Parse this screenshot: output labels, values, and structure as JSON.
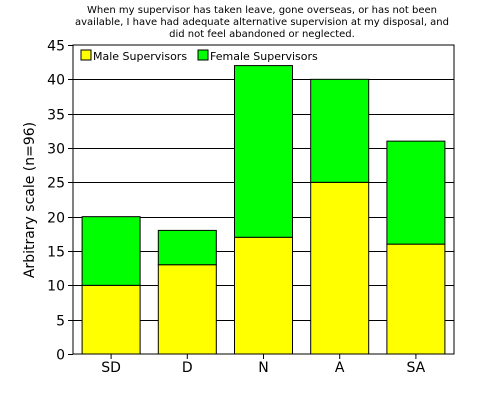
{
  "chart_data": {
    "type": "bar",
    "stacked": true,
    "title": [
      "When my supervisor has taken leave, gone overseas, or has not been",
      "available, I have had adequate alternative supervision at my disposal, and",
      "did not feel abandoned or neglected."
    ],
    "xlabel": "",
    "ylabel": "Arbitrary scale (n=96)",
    "ylim": [
      0,
      45
    ],
    "yticks": [
      0,
      5,
      10,
      15,
      20,
      25,
      30,
      35,
      40,
      45
    ],
    "categories": [
      "SD",
      "D",
      "N",
      "A",
      "SA"
    ],
    "series": [
      {
        "name": "Male Supervisors",
        "values": [
          10,
          13,
          17,
          25,
          16
        ],
        "color": "#ffff00"
      },
      {
        "name": "Female Supervisors",
        "values": [
          10,
          5,
          25,
          15,
          15
        ],
        "color": "#00ff00"
      }
    ],
    "grid": "horizontal",
    "legend": "top-left"
  }
}
